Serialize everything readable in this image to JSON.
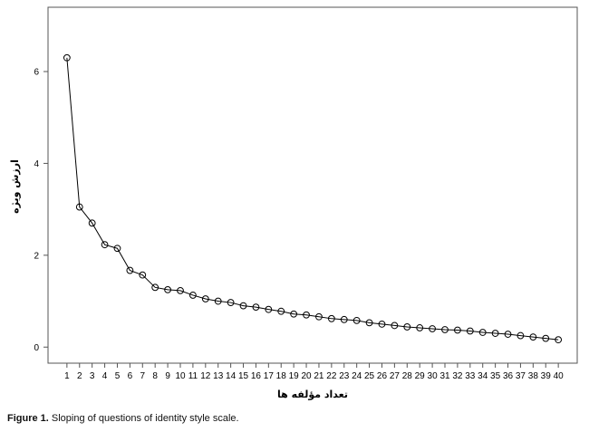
{
  "chart_data": {
    "type": "line",
    "xlabel": "تعداد مؤلفه ها",
    "ylabel": "ارزش ویژه",
    "x": [
      1,
      2,
      3,
      4,
      5,
      6,
      7,
      8,
      9,
      10,
      11,
      12,
      13,
      14,
      15,
      16,
      17,
      18,
      19,
      20,
      21,
      22,
      23,
      24,
      25,
      26,
      27,
      28,
      29,
      30,
      31,
      32,
      33,
      34,
      35,
      36,
      37,
      38,
      39,
      40
    ],
    "series": [
      {
        "values": [
          6.3,
          3.05,
          2.7,
          2.23,
          2.15,
          1.67,
          1.57,
          1.3,
          1.25,
          1.23,
          1.13,
          1.05,
          1.0,
          0.97,
          0.9,
          0.87,
          0.82,
          0.78,
          0.72,
          0.7,
          0.66,
          0.62,
          0.6,
          0.58,
          0.53,
          0.5,
          0.47,
          0.44,
          0.42,
          0.4,
          0.38,
          0.37,
          0.35,
          0.32,
          0.3,
          0.28,
          0.25,
          0.22,
          0.19,
          0.16
        ]
      }
    ],
    "yticks": [
      0,
      2,
      4,
      6
    ],
    "ylim": [
      -0.35,
      7.4
    ],
    "xlim": [
      -0.5,
      41.5
    ],
    "grid": false,
    "line_color": "#000000",
    "marker": "open-circle"
  },
  "caption": {
    "label": "Figure 1.",
    "text": " Sloping of questions of identity style scale."
  }
}
